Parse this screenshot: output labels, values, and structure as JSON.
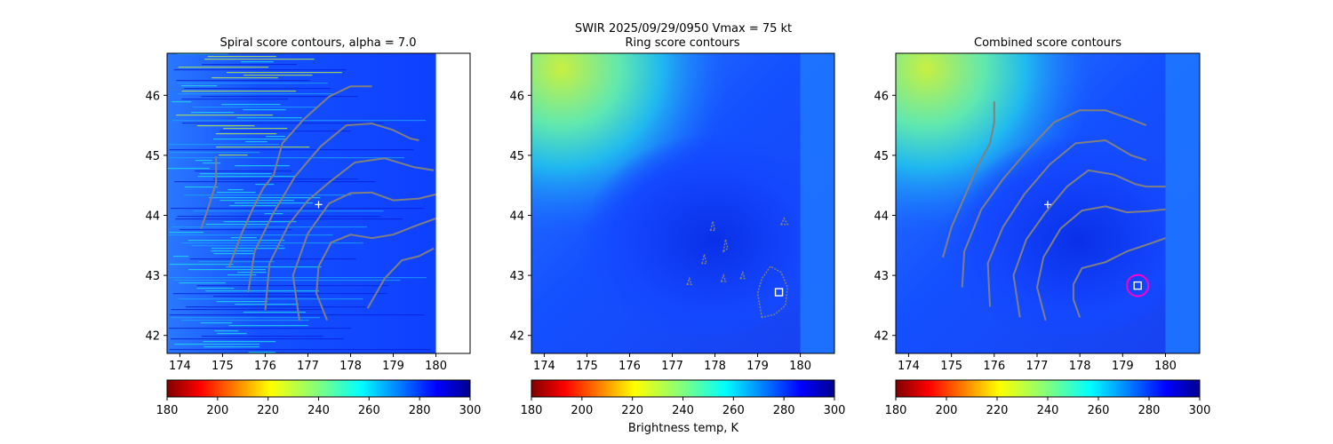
{
  "figure": {
    "suptitle_line1": "SWIR  2025/09/29/0950    Vmax = 75 kt",
    "cbar_label": "Brightness temp, K"
  },
  "chart_data": [
    {
      "type": "heatmap",
      "title": "Spiral score contours, alpha =  7.0",
      "xlim": [
        173.7,
        180.8
      ],
      "ylim": [
        41.7,
        46.7
      ],
      "x_ticks": [
        174,
        175,
        176,
        177,
        178,
        179,
        180
      ],
      "y_ticks": [
        42,
        43,
        44,
        45,
        46
      ],
      "image_extent_x": [
        173.7,
        180.0
      ],
      "style": "striped",
      "center_marker": {
        "x": 177.25,
        "y": 44.18,
        "symbol": "+"
      },
      "contours": [
        [
          [
            174.5,
            43.78
          ],
          [
            174.7,
            44.2
          ],
          [
            174.85,
            44.55
          ],
          [
            174.85,
            44.98
          ]
        ],
        [
          [
            175.15,
            43.13
          ],
          [
            175.45,
            43.7
          ],
          [
            175.7,
            44.1
          ],
          [
            175.95,
            44.45
          ],
          [
            176.2,
            44.68
          ],
          [
            176.4,
            45.2
          ],
          [
            176.9,
            45.6
          ],
          [
            177.5,
            45.98
          ],
          [
            178.0,
            46.15
          ],
          [
            178.5,
            46.15
          ]
        ],
        [
          [
            175.6,
            42.72
          ],
          [
            175.75,
            43.4
          ],
          [
            176.2,
            44.05
          ],
          [
            176.7,
            44.65
          ],
          [
            177.3,
            45.15
          ],
          [
            177.9,
            45.5
          ],
          [
            178.5,
            45.53
          ],
          [
            179.0,
            45.42
          ],
          [
            179.4,
            45.28
          ],
          [
            179.6,
            45.25
          ]
        ],
        [
          [
            176.0,
            42.42
          ],
          [
            176.1,
            43.2
          ],
          [
            176.55,
            43.85
          ],
          [
            177.0,
            44.25
          ],
          [
            177.5,
            44.55
          ],
          [
            178.1,
            44.88
          ],
          [
            178.8,
            44.95
          ],
          [
            179.5,
            44.8
          ],
          [
            179.95,
            44.75
          ]
        ],
        [
          [
            176.8,
            42.25
          ],
          [
            176.65,
            43.0
          ],
          [
            177.0,
            43.7
          ],
          [
            177.5,
            44.2
          ],
          [
            178.0,
            44.37
          ],
          [
            178.5,
            44.38
          ],
          [
            179.0,
            44.25
          ],
          [
            179.6,
            44.28
          ],
          [
            180.0,
            44.35
          ]
        ],
        [
          [
            177.45,
            42.25
          ],
          [
            177.2,
            42.7
          ],
          [
            177.25,
            43.15
          ],
          [
            177.55,
            43.55
          ],
          [
            178.0,
            43.68
          ],
          [
            178.5,
            43.62
          ],
          [
            179.0,
            43.68
          ],
          [
            179.5,
            43.82
          ],
          [
            180.0,
            43.95
          ]
        ],
        [
          [
            178.4,
            42.45
          ],
          [
            178.8,
            42.95
          ],
          [
            179.2,
            43.25
          ],
          [
            179.6,
            43.32
          ],
          [
            179.95,
            43.45
          ]
        ]
      ]
    },
    {
      "type": "heatmap",
      "title": "Ring score contours",
      "xlim": [
        173.7,
        180.8
      ],
      "ylim": [
        41.7,
        46.7
      ],
      "x_ticks": [
        174,
        175,
        176,
        177,
        178,
        179,
        180
      ],
      "y_ticks": [
        42,
        43,
        44,
        45,
        46
      ],
      "image_extent_x": [
        173.7,
        180.8
      ],
      "style": "satellite",
      "square_marker": {
        "x": 179.5,
        "y": 42.72
      },
      "blobs": [
        [
          [
            179.1,
            42.3
          ],
          [
            179.0,
            42.7
          ],
          [
            179.1,
            42.95
          ],
          [
            179.3,
            43.15
          ],
          [
            179.55,
            43.05
          ],
          [
            179.7,
            42.8
          ],
          [
            179.65,
            42.5
          ],
          [
            179.4,
            42.35
          ]
        ],
        [
          [
            179.55,
            43.85
          ],
          [
            179.62,
            43.95
          ],
          [
            179.7,
            43.85
          ]
        ],
        [
          [
            178.6,
            42.95
          ],
          [
            178.65,
            43.05
          ],
          [
            178.7,
            42.95
          ]
        ],
        [
          [
            178.2,
            43.4
          ],
          [
            178.25,
            43.6
          ],
          [
            178.3,
            43.45
          ]
        ],
        [
          [
            177.7,
            43.2
          ],
          [
            177.75,
            43.35
          ],
          [
            177.8,
            43.2
          ]
        ],
        [
          [
            177.9,
            43.75
          ],
          [
            177.95,
            43.9
          ],
          [
            178.0,
            43.75
          ]
        ],
        [
          [
            177.35,
            42.85
          ],
          [
            177.4,
            42.95
          ],
          [
            177.45,
            42.85
          ]
        ],
        [
          [
            178.15,
            42.9
          ],
          [
            178.2,
            43.0
          ],
          [
            178.25,
            42.9
          ]
        ]
      ]
    },
    {
      "type": "heatmap",
      "title": "Combined score contours",
      "xlim": [
        173.7,
        180.8
      ],
      "ylim": [
        41.7,
        46.7
      ],
      "x_ticks": [
        174,
        175,
        176,
        177,
        178,
        179,
        180
      ],
      "y_ticks": [
        42,
        43,
        44,
        45,
        46
      ],
      "image_extent_x": [
        173.7,
        180.8
      ],
      "style": "satellite",
      "center_marker": {
        "x": 177.25,
        "y": 44.18,
        "symbol": "+"
      },
      "square_marker": {
        "x": 179.35,
        "y": 42.83
      },
      "circle_marker": {
        "x": 179.35,
        "y": 42.83
      },
      "contours": [
        [
          [
            174.8,
            43.3
          ],
          [
            175.0,
            43.8
          ],
          [
            175.3,
            44.3
          ],
          [
            175.6,
            44.8
          ],
          [
            175.9,
            45.2
          ],
          [
            176.0,
            45.55
          ],
          [
            176.0,
            45.9
          ]
        ],
        [
          [
            175.25,
            42.8
          ],
          [
            175.3,
            43.4
          ],
          [
            175.7,
            44.1
          ],
          [
            176.2,
            44.6
          ],
          [
            176.8,
            45.1
          ],
          [
            177.4,
            45.55
          ],
          [
            178.0,
            45.75
          ],
          [
            178.6,
            45.75
          ],
          [
            179.2,
            45.6
          ],
          [
            179.55,
            45.5
          ]
        ],
        [
          [
            175.9,
            42.48
          ],
          [
            175.85,
            43.2
          ],
          [
            176.2,
            43.8
          ],
          [
            176.7,
            44.35
          ],
          [
            177.3,
            44.85
          ],
          [
            177.9,
            45.2
          ],
          [
            178.6,
            45.25
          ],
          [
            179.2,
            45.0
          ],
          [
            179.55,
            44.92
          ]
        ],
        [
          [
            176.6,
            42.3
          ],
          [
            176.45,
            43.0
          ],
          [
            176.75,
            43.6
          ],
          [
            177.2,
            44.05
          ],
          [
            177.7,
            44.48
          ],
          [
            178.2,
            44.75
          ],
          [
            178.8,
            44.68
          ],
          [
            179.3,
            44.52
          ],
          [
            179.55,
            44.48
          ],
          [
            180.0,
            44.48
          ]
        ],
        [
          [
            177.2,
            42.25
          ],
          [
            177.0,
            42.8
          ],
          [
            177.15,
            43.3
          ],
          [
            177.55,
            43.78
          ],
          [
            178.05,
            44.08
          ],
          [
            178.6,
            44.15
          ],
          [
            179.1,
            44.05
          ],
          [
            179.6,
            44.07
          ],
          [
            180.0,
            44.1
          ]
        ],
        [
          [
            178.0,
            42.3
          ],
          [
            177.85,
            42.6
          ],
          [
            177.85,
            42.85
          ],
          [
            178.05,
            43.12
          ],
          [
            178.6,
            43.22
          ],
          [
            179.1,
            43.4
          ],
          [
            179.6,
            43.52
          ],
          [
            180.0,
            43.62
          ]
        ]
      ]
    }
  ],
  "colorbars": [
    {
      "vmin": 180,
      "vmax": 300,
      "ticks": [
        180,
        200,
        220,
        240,
        260,
        280,
        300
      ],
      "cmap": "jet_r"
    },
    {
      "vmin": 180,
      "vmax": 300,
      "ticks": [
        180,
        200,
        220,
        240,
        260,
        280,
        300
      ],
      "cmap": "jet_r"
    },
    {
      "vmin": 180,
      "vmax": 300,
      "ticks": [
        180,
        200,
        220,
        240,
        260,
        280,
        300
      ],
      "cmap": "jet_r"
    }
  ],
  "colors": {
    "contour": "#808080",
    "circle": "#ff00cc",
    "marker": "#ffffff",
    "deep_blue": "#0a3cff",
    "mid_blue": "#2a70ff",
    "light_blue": "#1ea0ff",
    "cyan": "#20e0e8",
    "yellow_green": "#c0f040"
  }
}
